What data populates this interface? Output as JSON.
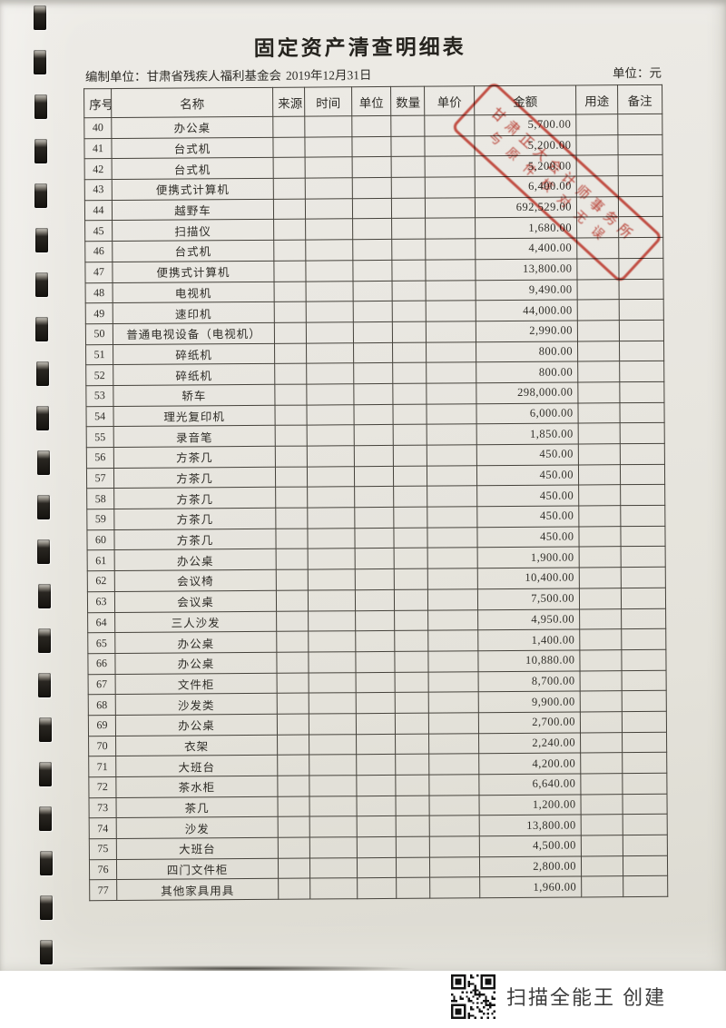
{
  "page": {
    "title": "固定资产清查明细表",
    "prepared_by_label": "编制单位：",
    "prepared_by": "甘肃省残疾人福利基金会",
    "date": "2019年12月31日",
    "unit_label": "单位：",
    "unit_value": "元"
  },
  "table": {
    "headers": [
      "序号",
      "名称",
      "来源",
      "时间",
      "单位",
      "数量",
      "单价",
      "金额",
      "用途",
      "备注"
    ],
    "rows": [
      {
        "no": "40",
        "name": "办公桌",
        "amount": "5,700.00"
      },
      {
        "no": "41",
        "name": "台式机",
        "amount": "5,200.00"
      },
      {
        "no": "42",
        "name": "台式机",
        "amount": "5,200.00"
      },
      {
        "no": "43",
        "name": "便携式计算机",
        "amount": "6,400.00"
      },
      {
        "no": "44",
        "name": "越野车",
        "amount": "692,529.00"
      },
      {
        "no": "45",
        "name": "扫描仪",
        "amount": "1,680.00"
      },
      {
        "no": "46",
        "name": "台式机",
        "amount": "4,400.00"
      },
      {
        "no": "47",
        "name": "便携式计算机",
        "amount": "13,800.00"
      },
      {
        "no": "48",
        "name": "电视机",
        "amount": "9,490.00"
      },
      {
        "no": "49",
        "name": "速印机",
        "amount": "44,000.00"
      },
      {
        "no": "50",
        "name": "普通电视设备（电视机）",
        "amount": "2,990.00"
      },
      {
        "no": "51",
        "name": "碎纸机",
        "amount": "800.00"
      },
      {
        "no": "52",
        "name": "碎纸机",
        "amount": "800.00"
      },
      {
        "no": "53",
        "name": "轿车",
        "amount": "298,000.00"
      },
      {
        "no": "54",
        "name": "理光复印机",
        "amount": "6,000.00"
      },
      {
        "no": "55",
        "name": "录音笔",
        "amount": "1,850.00"
      },
      {
        "no": "56",
        "name": "方茶几",
        "amount": "450.00"
      },
      {
        "no": "57",
        "name": "方茶几",
        "amount": "450.00"
      },
      {
        "no": "58",
        "name": "方茶几",
        "amount": "450.00"
      },
      {
        "no": "59",
        "name": "方茶几",
        "amount": "450.00"
      },
      {
        "no": "60",
        "name": "方茶几",
        "amount": "450.00"
      },
      {
        "no": "61",
        "name": "办公桌",
        "amount": "1,900.00"
      },
      {
        "no": "62",
        "name": "会议椅",
        "amount": "10,400.00"
      },
      {
        "no": "63",
        "name": "会议桌",
        "amount": "7,500.00"
      },
      {
        "no": "64",
        "name": "三人沙发",
        "amount": "4,950.00"
      },
      {
        "no": "65",
        "name": "办公桌",
        "amount": "1,400.00"
      },
      {
        "no": "66",
        "name": "办公桌",
        "amount": "10,880.00"
      },
      {
        "no": "67",
        "name": "文件柜",
        "amount": "8,700.00"
      },
      {
        "no": "68",
        "name": "沙发类",
        "amount": "9,900.00"
      },
      {
        "no": "69",
        "name": "办公桌",
        "amount": "2,700.00"
      },
      {
        "no": "70",
        "name": "衣架",
        "amount": "2,240.00"
      },
      {
        "no": "71",
        "name": "大班台",
        "amount": "4,200.00"
      },
      {
        "no": "72",
        "name": "茶水柜",
        "amount": "6,640.00"
      },
      {
        "no": "73",
        "name": "茶几",
        "amount": "1,200.00"
      },
      {
        "no": "74",
        "name": "沙发",
        "amount": "13,800.00"
      },
      {
        "no": "75",
        "name": "大班台",
        "amount": "4,500.00"
      },
      {
        "no": "76",
        "name": "四门文件柜",
        "amount": "2,800.00"
      },
      {
        "no": "77",
        "name": "其他家具用具",
        "amount": "1,960.00"
      }
    ]
  },
  "stamp": {
    "line1": "甘肃正大会计师事务所",
    "line2": "与原件核对无误",
    "color": "#b23024"
  },
  "footer": {
    "scanner_text": "扫描全能王 创建",
    "qr_icon": "qr-code"
  },
  "colors": {
    "paper": "#e8e6df",
    "ink": "#33312c",
    "table_line": "#45423b",
    "stamp_red": "#b23024"
  }
}
